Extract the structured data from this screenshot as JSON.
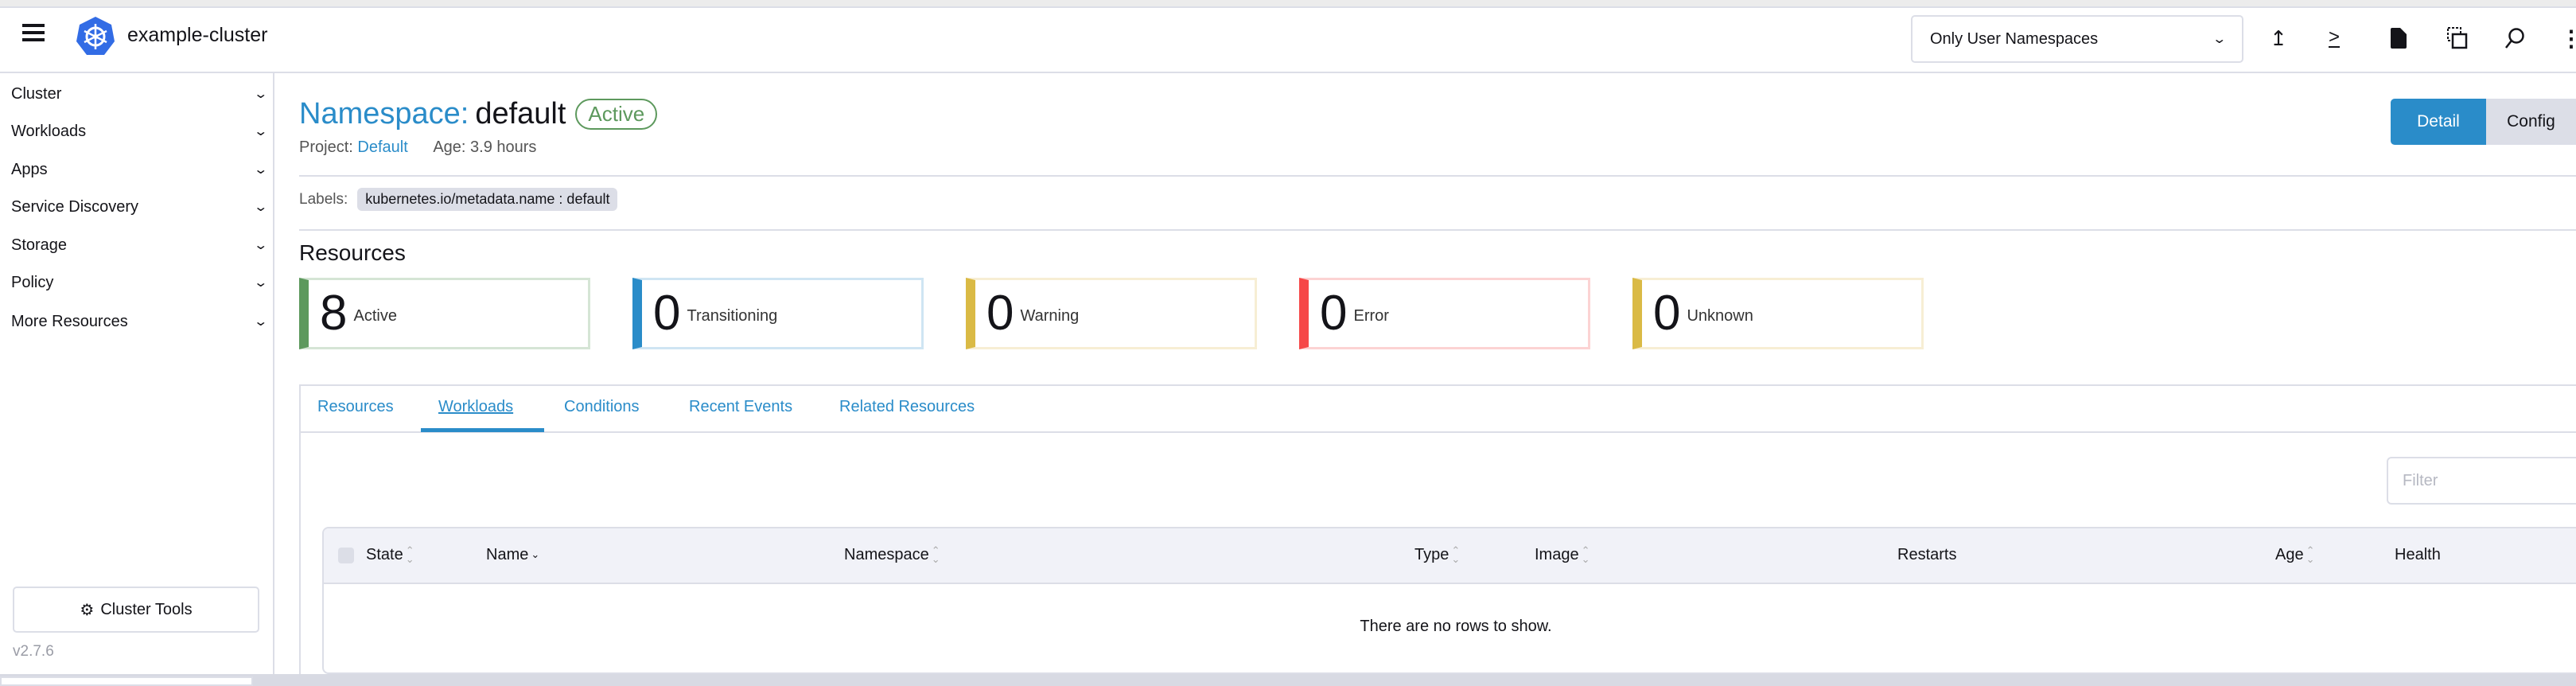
{
  "header": {
    "cluster_name": "example-cluster",
    "namespace_filter": "Only User Namespaces",
    "icons": [
      "upload-icon",
      "terminal-icon",
      "file-icon",
      "copy-config-icon",
      "search-icon",
      "more-vertical-icon"
    ]
  },
  "sidebar": {
    "items": [
      {
        "label": "Cluster"
      },
      {
        "label": "Workloads"
      },
      {
        "label": "Apps"
      },
      {
        "label": "Service Discovery"
      },
      {
        "label": "Storage"
      },
      {
        "label": "Policy"
      },
      {
        "label": "More Resources"
      }
    ],
    "cluster_tools": "Cluster Tools",
    "version": "v2.7.6"
  },
  "page": {
    "title_prefix": "Namespace:",
    "title_name": "default",
    "status": "Active",
    "project_label": "Project:",
    "project_value": "Default",
    "age": "Age: 3.9 hours",
    "labels_label": "Labels:",
    "label_chip": "kubernetes.io/metadata.name : default",
    "detail_button": "Detail",
    "config_button": "Config"
  },
  "resources": {
    "heading": "Resources",
    "cards": [
      {
        "count": "8",
        "label": "Active",
        "color": "#5d995d",
        "border": "#d5e5d5"
      },
      {
        "count": "0",
        "label": "Transitioning",
        "color": "#2a8cc9",
        "border": "#cfe5f3"
      },
      {
        "count": "0",
        "label": "Warning",
        "color": "#daba45",
        "border": "#f7eed4"
      },
      {
        "count": "0",
        "label": "Error",
        "color": "#f64747",
        "border": "#fcd3d3"
      },
      {
        "count": "0",
        "label": "Unknown",
        "color": "#daba45",
        "border": "#f7eed4"
      }
    ]
  },
  "tabs": [
    {
      "label": "Resources"
    },
    {
      "label": "Workloads",
      "active": true
    },
    {
      "label": "Conditions"
    },
    {
      "label": "Recent Events"
    },
    {
      "label": "Related Resources"
    }
  ],
  "table": {
    "filter_placeholder": "Filter",
    "columns": [
      "State",
      "Name",
      "Namespace",
      "Type",
      "Image",
      "Restarts",
      "Age",
      "Health"
    ],
    "empty_message": "There are no rows to show."
  }
}
